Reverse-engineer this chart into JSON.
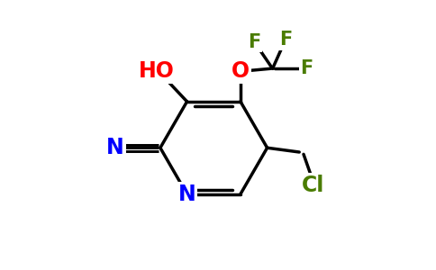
{
  "background_color": "#ffffff",
  "bond_lw": 2.5,
  "atom_colors": {
    "N_ring": "#0000ff",
    "N_cyano": "#0000ff",
    "O": "#ff0000",
    "F": "#4a7c00",
    "Cl": "#4a7c00",
    "HO": "#ff0000",
    "C": "#000000"
  },
  "font_size": 17,
  "font_size_F": 15
}
